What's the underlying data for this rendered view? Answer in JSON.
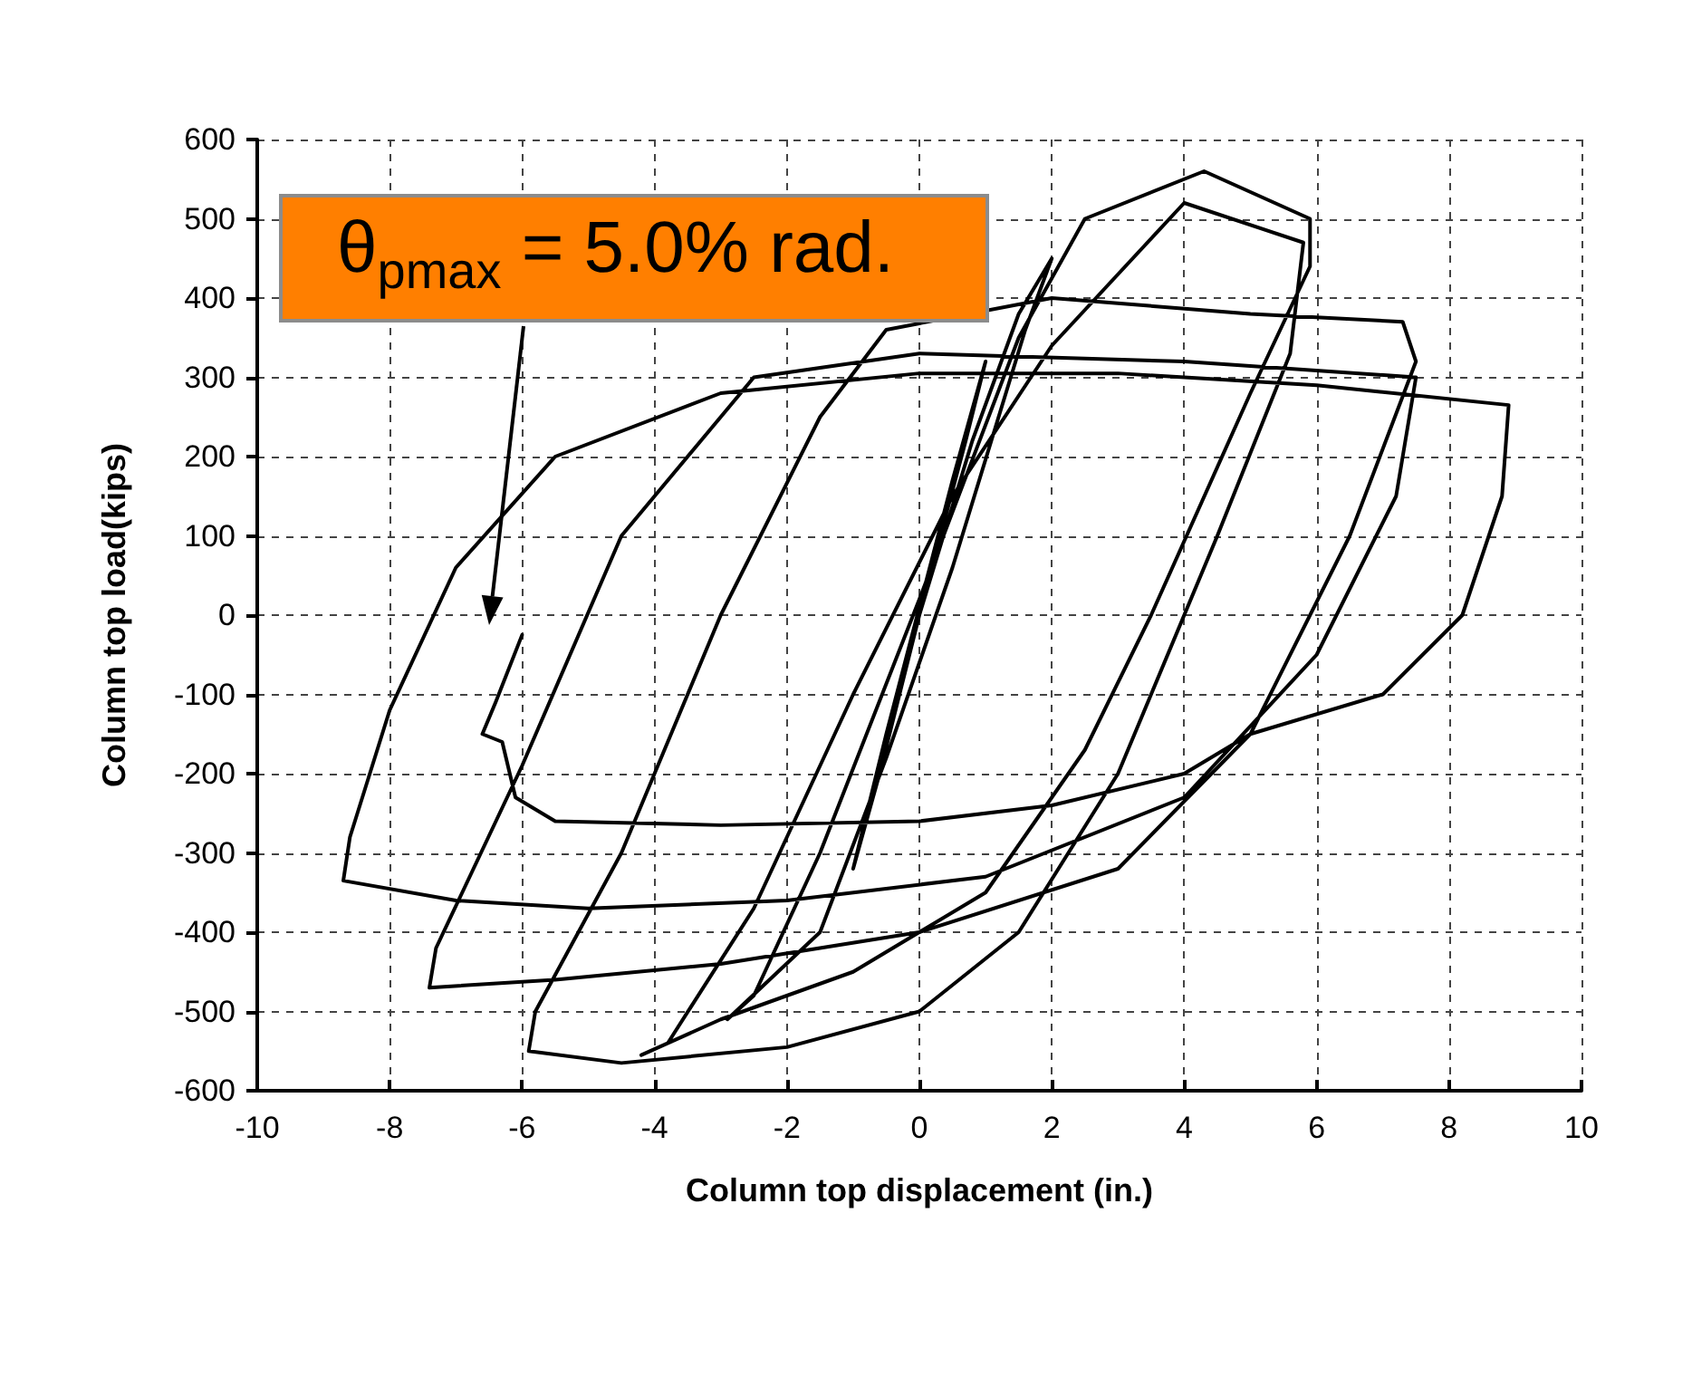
{
  "chart_data": {
    "type": "line",
    "xlabel": "Column top displacement (in.)",
    "ylabel": "Column top load(kips)",
    "xlim": [
      -10,
      10
    ],
    "xticks": [
      -10,
      -8,
      -6,
      -4,
      -2,
      0,
      2,
      4,
      6,
      8,
      10
    ],
    "ylim": [
      -600,
      600
    ],
    "yticks": [
      -600,
      -500,
      -400,
      -300,
      -200,
      -100,
      0,
      100,
      200,
      300,
      400,
      500,
      600
    ],
    "grid": true,
    "marker": "none",
    "line_style": "solid",
    "annotations": [
      "θ$_{pmax}$ = 5.0% rad."
    ],
    "series": [
      {
        "color": "#000000",
        "x": [
          0,
          0.7,
          1.0,
          0.5,
          -0.5,
          -1.0,
          -0.6,
          0,
          0.8,
          1.5,
          2.0,
          1.6,
          0.5,
          -0.5,
          -1.5,
          -2.9,
          -2.5,
          -1.5,
          0,
          1.5,
          2.5,
          4.3,
          5.9,
          5.9,
          5.0,
          3.5,
          2.5,
          1,
          -1,
          -3,
          -4.2,
          -3.8,
          -2.5,
          -1,
          0.5,
          2,
          4,
          5.8,
          5.6,
          4.5,
          3,
          1.5,
          0,
          -2,
          -4.5,
          -5.9,
          -5.8,
          -4.5,
          -3,
          -1.5,
          -0.5,
          2,
          5,
          7.3,
          7.5,
          6.5,
          5,
          3,
          0,
          -3,
          -5.5,
          -7.4,
          -7.3,
          -6,
          -4.5,
          -2.5,
          0,
          4,
          7.5,
          7.2,
          6,
          4,
          1,
          -2,
          -5,
          -7,
          -8.7,
          -8.6,
          -8,
          -7,
          -5.5,
          -3,
          0,
          3,
          6,
          8.9,
          8.8,
          8.2,
          7,
          5,
          4,
          2,
          0,
          -3,
          -5.5,
          -6.1,
          -6.3,
          -6.6,
          -6.4,
          -6.0
        ],
        "values": [
          0,
          220,
          320,
          170,
          -150,
          -320,
          -200,
          0,
          220,
          380,
          450,
          360,
          60,
          -180,
          -400,
          -510,
          -480,
          -300,
          20,
          350,
          500,
          560,
          500,
          440,
          280,
          0,
          -170,
          -350,
          -450,
          -510,
          -555,
          -540,
          -370,
          -100,
          150,
          340,
          520,
          470,
          330,
          100,
          -200,
          -400,
          -500,
          -545,
          -565,
          -550,
          -500,
          -300,
          0,
          250,
          360,
          400,
          380,
          370,
          320,
          100,
          -150,
          -320,
          -400,
          -440,
          -460,
          -470,
          -420,
          -190,
          100,
          300,
          330,
          320,
          300,
          150,
          -50,
          -230,
          -330,
          -360,
          -370,
          -360,
          -335,
          -280,
          -120,
          60,
          200,
          280,
          305,
          305,
          290,
          265,
          150,
          0,
          -100,
          -150,
          -200,
          -240,
          -260,
          -265,
          -260,
          -230,
          -160,
          -150,
          -110,
          -25
        ]
      }
    ]
  }
}
